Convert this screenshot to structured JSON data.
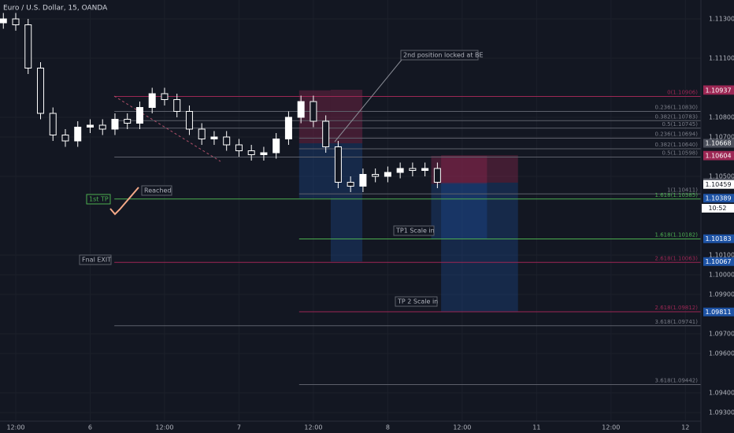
{
  "chart_data": {
    "type": "candlestick",
    "title": "Euro / U.S. Dollar, 15, OANDA",
    "x": [
      -2,
      0,
      2,
      4,
      6,
      8,
      10,
      12,
      14,
      16,
      18,
      20,
      22,
      24,
      26,
      28,
      30,
      32,
      34,
      36,
      38,
      40,
      42,
      44,
      46,
      48,
      50,
      52,
      54,
      56,
      58,
      60,
      62,
      64,
      66,
      68
    ],
    "open": [
      1.1128,
      1.113,
      1.1127,
      1.1105,
      1.1082,
      1.1071,
      1.1068,
      1.1075,
      1.1076,
      1.1074,
      1.1079,
      1.1077,
      1.1085,
      1.1092,
      1.1089,
      1.1083,
      1.1074,
      1.1069,
      1.107,
      1.1066,
      1.1063,
      1.1061,
      1.1062,
      1.1069,
      1.108,
      1.1088,
      1.1078,
      1.1065,
      1.1047,
      1.1045,
      1.1051,
      1.105,
      1.1052,
      1.1054,
      1.1053,
      1.1054
    ],
    "high": [
      1.1133,
      1.1133,
      1.113,
      1.1108,
      1.1085,
      1.1074,
      1.1078,
      1.1079,
      1.1079,
      1.1082,
      1.1082,
      1.1088,
      1.1095,
      1.1095,
      1.1092,
      1.1086,
      1.1077,
      1.1073,
      1.1073,
      1.1069,
      1.1066,
      1.1065,
      1.1072,
      1.1083,
      1.1091,
      1.1091,
      1.1081,
      1.1068,
      1.105,
      1.1054,
      1.1054,
      1.1055,
      1.1057,
      1.1057,
      1.1057,
      1.1057
    ],
    "low": [
      1.1125,
      1.1124,
      1.1102,
      1.1079,
      1.1068,
      1.1065,
      1.1065,
      1.1072,
      1.1071,
      1.1071,
      1.1074,
      1.1074,
      1.1082,
      1.1086,
      1.108,
      1.1071,
      1.1066,
      1.1066,
      1.1063,
      1.106,
      1.1058,
      1.1058,
      1.1059,
      1.1066,
      1.1077,
      1.1075,
      1.1062,
      1.1044,
      1.1042,
      1.1042,
      1.1047,
      1.1047,
      1.1049,
      1.105,
      1.105,
      1.1044
    ],
    "close": [
      1.113,
      1.1127,
      1.1105,
      1.1082,
      1.1071,
      1.1068,
      1.1075,
      1.1076,
      1.1074,
      1.1079,
      1.1077,
      1.1085,
      1.1092,
      1.1089,
      1.1083,
      1.1074,
      1.1069,
      1.107,
      1.1066,
      1.1063,
      1.1061,
      1.1062,
      1.1069,
      1.108,
      1.1088,
      1.1078,
      1.1065,
      1.1047,
      1.1045,
      1.1051,
      1.105,
      1.1052,
      1.1054,
      1.1053,
      1.1054,
      1.1047
    ],
    "color": "#ffffff",
    "xlim": [
      -2.54,
      110.5
    ],
    "xticks": [
      {
        "value": 0,
        "label": "12:00"
      },
      {
        "value": 12,
        "label": "6"
      },
      {
        "value": 24,
        "label": "12:00"
      },
      {
        "value": 36,
        "label": "7"
      },
      {
        "value": 48,
        "label": "12:00"
      },
      {
        "value": 60,
        "label": "8"
      },
      {
        "value": 72,
        "label": "12:00"
      },
      {
        "value": 84,
        "label": "11"
      },
      {
        "value": 96,
        "label": "12:00"
      },
      {
        "value": 108,
        "label": "12"
      }
    ],
    "ylim": [
      1.09256,
      1.11396
    ],
    "yticks": [
      {
        "value": 1.113,
        "label": "1.11300"
      },
      {
        "value": 1.111,
        "label": "1.11100"
      },
      {
        "value": 1.108,
        "label": "1.10800"
      },
      {
        "value": 1.107,
        "label": "1.10700"
      },
      {
        "value": 1.105,
        "label": "1.10500"
      },
      {
        "value": 1.101,
        "label": "1.10100"
      },
      {
        "value": 1.1,
        "label": "1.10000"
      },
      {
        "value": 1.099,
        "label": "1.09900"
      },
      {
        "value": 1.097,
        "label": "1.09700"
      },
      {
        "value": 1.096,
        "label": "1.09600"
      },
      {
        "value": 1.094,
        "label": "1.09400"
      },
      {
        "value": 1.093,
        "label": "1.09300"
      }
    ],
    "fib_levels": [
      {
        "label": "0(1.10906)",
        "value": 1.10906,
        "x0": 15.9,
        "color": "#9c2754"
      },
      {
        "label": "0.236(1.10830)",
        "value": 1.1083,
        "x0": 15.9,
        "color": "#5d606b"
      },
      {
        "label": "0.382(1.10783)",
        "value": 1.10783,
        "x0": 15.9,
        "color": "#5d606b"
      },
      {
        "label": "0.5(1.10745)",
        "value": 1.10745,
        "x0": 15.9,
        "color": "#5d606b"
      },
      {
        "label": "0.236(1.10694)",
        "value": 1.10694,
        "x0": 45.7,
        "color": "#5d606b"
      },
      {
        "label": "0.382(1.10640)",
        "value": 1.1064,
        "x0": 45.7,
        "color": "#5d606b"
      },
      {
        "label": "0.5(1.10598)",
        "value": 1.10598,
        "x0": 15.9,
        "color": "#5d606b"
      },
      {
        "label": "1(1.10411)",
        "value": 1.10411,
        "x0": 45.7,
        "color": "#5d606b"
      },
      {
        "label": "1.618(1.10385)",
        "value": 1.10385,
        "x0": 15.9,
        "color": "#4caf50"
      },
      {
        "label": "1.618(1.10182)",
        "value": 1.10182,
        "x0": 45.7,
        "color": "#4caf50"
      },
      {
        "label": "2.618(1.10063)",
        "value": 1.10063,
        "x0": 15.9,
        "color": "#9c2754"
      },
      {
        "label": "2.618(1.09812)",
        "value": 1.09812,
        "x0": 45.7,
        "color": "#9c2754"
      },
      {
        "label": "3.618(1.09741)",
        "value": 1.09741,
        "x0": 15.9,
        "color": "#5d606b"
      },
      {
        "label": "3.618(1.09442)",
        "value": 1.09442,
        "x0": 45.7,
        "color": "#5d606b"
      }
    ],
    "positions": [
      {
        "x": [
          45.7,
          50.8
        ],
        "entry": 1.10668,
        "stop": 1.10937,
        "target": 1.10389
      },
      {
        "x": [
          50.8,
          55.9
        ],
        "entry": 1.10668,
        "stop": 1.1094,
        "target": 1.10067
      },
      {
        "x": [
          67.0,
          76.0
        ],
        "entry": 1.10462,
        "stop": 1.10604,
        "target": 1.10183
      },
      {
        "x": [
          68.6,
          81.0
        ],
        "entry": 1.10468,
        "stop": 1.10607,
        "target": 1.09811
      }
    ],
    "price_tags": [
      {
        "value": 1.1094,
        "label": "1.10940",
        "color": "#9c2754"
      },
      {
        "value": 1.10937,
        "label": "1.10937",
        "color": "#9c2754"
      },
      {
        "value": 1.10668,
        "label": "1.10668",
        "color": "#4a4e5a"
      },
      {
        "value": 1.10668,
        "label": "1.10668",
        "color": "#4a4e5a"
      },
      {
        "value": 1.10607,
        "label": "1.10607",
        "color": "#9c2754"
      },
      {
        "value": 1.10604,
        "label": "1.10604",
        "color": "#9c2754"
      },
      {
        "value": 1.10468,
        "label": "1.10468",
        "color": "#4a4e5a"
      },
      {
        "value": 1.10462,
        "label": "1.10462",
        "color": "#4a4e5a"
      },
      {
        "value": 1.10459,
        "label": "1.10459",
        "color": "#ffffff"
      },
      {
        "value": 1.10389,
        "label": "1.10389",
        "color": "#1e53a5"
      },
      {
        "value": 1.10183,
        "label": "1.10183",
        "color": "#1e53a5"
      },
      {
        "value": 1.10067,
        "label": "1.10067",
        "color": "#1e53a5"
      },
      {
        "value": 1.09811,
        "label": "1.09811",
        "color": "#1e53a5"
      }
    ],
    "countdown": "10:52",
    "annotations": [
      "2nd position locked at BE",
      "Reached",
      "1st TP",
      "Fnal EXIT",
      "TP1 Scale in",
      "TP 2 Scale in"
    ]
  }
}
